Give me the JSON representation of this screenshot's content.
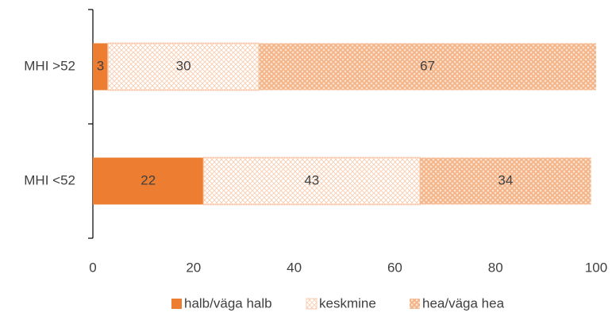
{
  "chart_data": {
    "type": "bar",
    "orientation": "horizontal",
    "stacked": true,
    "categories": [
      "MHI >52",
      "MHI <52"
    ],
    "series": [
      {
        "name": "halb/väga halb",
        "color": "#ed7d31",
        "pattern": "solid",
        "values": [
          3,
          22
        ]
      },
      {
        "name": "keskmine",
        "color": "#f8cbad",
        "pattern": "light",
        "values": [
          30,
          43
        ]
      },
      {
        "name": "hea/väga hea",
        "color": "#f4b183",
        "pattern": "dense",
        "values": [
          67,
          34
        ]
      }
    ],
    "xlim": [
      0,
      100
    ],
    "xticks": [
      0,
      20,
      40,
      60,
      80,
      100
    ],
    "grid": false,
    "legend": "bottom"
  }
}
